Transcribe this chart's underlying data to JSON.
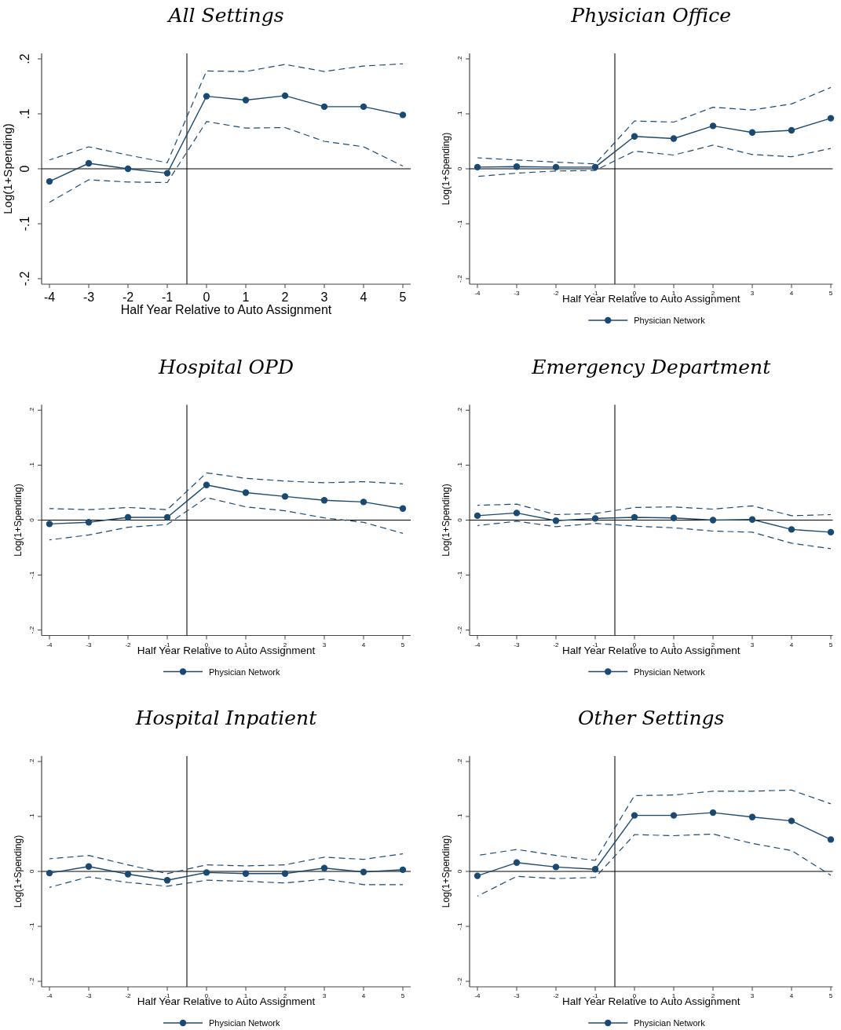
{
  "chart_data": [
    {
      "type": "line",
      "title": "All Settings",
      "xlabel": "Half Year Relative to Auto Assignment",
      "ylabel": "Log(1+Spending)",
      "x": [
        -4,
        -3,
        -2,
        -1,
        0,
        1,
        2,
        3,
        4,
        5
      ],
      "xlim": [
        -4.2,
        5.2
      ],
      "xticks": [
        -4,
        -3,
        -2,
        -1,
        0,
        1,
        2,
        3,
        4,
        5
      ],
      "ylim": [
        -0.21,
        0.21
      ],
      "yticks": [
        {
          "value": -0.2,
          "label": "-.2"
        },
        {
          "value": -0.1,
          "label": "-.1"
        },
        {
          "value": 0,
          "label": "0"
        },
        {
          "value": 0.1,
          "label": ".1"
        },
        {
          "value": 0.2,
          "label": ".2"
        }
      ],
      "marker": "circle",
      "line_style": "solid",
      "legend": false,
      "ref_lines": [
        {
          "axis": "x",
          "value": -0.5,
          "color": "#222222"
        },
        {
          "axis": "y",
          "value": 0,
          "color": "#000000"
        }
      ],
      "series": [
        {
          "color": "#1a4a72",
          "values": [
            -0.023,
            0.01,
            0.0,
            -0.008,
            0.132,
            0.125,
            0.133,
            0.113,
            0.113,
            0.098
          ]
        },
        {
          "color": "#1a4a72",
          "marker": "none",
          "line_style": "dashed",
          "values": [
            0.016,
            0.04,
            0.025,
            0.011,
            0.178,
            0.177,
            0.19,
            0.177,
            0.187,
            0.191
          ]
        },
        {
          "color": "#1a4a72",
          "marker": "none",
          "line_style": "dashed",
          "values": [
            -0.061,
            -0.02,
            -0.024,
            -0.025,
            0.086,
            0.074,
            0.075,
            0.05,
            0.04,
            0.005
          ]
        }
      ]
    },
    {
      "type": "line",
      "title": "Physician Office",
      "xlabel": "Half Year Relative to Auto Assignment",
      "ylabel": "Log(1+Spending)",
      "x": [
        -4,
        -3,
        -2,
        -1,
        0,
        1,
        2,
        3,
        4,
        5
      ],
      "xlim": [
        -4.2,
        5.05
      ],
      "xticks": [
        -4,
        -3,
        -2,
        -1,
        0,
        1,
        2,
        3,
        4,
        5
      ],
      "ylim": [
        -0.21,
        0.21
      ],
      "yticks": [
        {
          "value": -0.2,
          "label": "-.2"
        },
        {
          "value": -0.1,
          "label": "-.1"
        },
        {
          "value": 0,
          "label": "0"
        },
        {
          "value": 0.1,
          "label": ".1"
        },
        {
          "value": 0.2,
          "label": ".2"
        }
      ],
      "marker": "circle",
      "line_style": "solid",
      "legend": "bottom",
      "ref_lines": [
        {
          "axis": "x",
          "value": -0.5,
          "color": "#222222"
        },
        {
          "axis": "y",
          "value": 0,
          "color": "#000000"
        }
      ],
      "series": [
        {
          "name": "Physician Network",
          "color": "#1a4a72",
          "values": [
            0.003,
            0.004,
            0.003,
            0.003,
            0.059,
            0.055,
            0.078,
            0.066,
            0.07,
            0.092
          ]
        },
        {
          "color": "#1a4a72",
          "marker": "none",
          "line_style": "dashed",
          "values": [
            0.02,
            0.016,
            0.012,
            0.009,
            0.087,
            0.085,
            0.112,
            0.107,
            0.118,
            0.148
          ]
        },
        {
          "color": "#1a4a72",
          "marker": "none",
          "line_style": "dashed",
          "values": [
            -0.014,
            -0.008,
            -0.004,
            -0.003,
            0.032,
            0.025,
            0.043,
            0.026,
            0.022,
            0.037
          ]
        }
      ]
    },
    {
      "type": "line",
      "title": "Hospital OPD",
      "xlabel": "Half Year Relative to Auto Assignment",
      "ylabel": "Log(1+Spending)",
      "x": [
        -4,
        -3,
        -2,
        -1,
        0,
        1,
        2,
        3,
        4,
        5
      ],
      "xlim": [
        -4.2,
        5.2
      ],
      "xticks": [
        -4,
        -3,
        -2,
        -1,
        0,
        1,
        2,
        3,
        4,
        5
      ],
      "ylim": [
        -0.21,
        0.21
      ],
      "yticks": [
        {
          "value": -0.2,
          "label": "-.2"
        },
        {
          "value": -0.1,
          "label": "-.1"
        },
        {
          "value": 0,
          "label": "0"
        },
        {
          "value": 0.1,
          "label": ".1"
        },
        {
          "value": 0.2,
          "label": ".2"
        }
      ],
      "marker": "circle",
      "line_style": "solid",
      "legend": "bottom",
      "ref_lines": [
        {
          "axis": "x",
          "value": -0.5,
          "color": "#222222"
        },
        {
          "axis": "y",
          "value": 0,
          "color": "#000000"
        }
      ],
      "series": [
        {
          "name": "Physician Network",
          "color": "#1a4a72",
          "values": [
            -0.007,
            -0.004,
            0.005,
            0.005,
            0.064,
            0.05,
            0.043,
            0.036,
            0.033,
            0.021
          ]
        },
        {
          "color": "#1a4a72",
          "marker": "none",
          "line_style": "dashed",
          "values": [
            0.021,
            0.019,
            0.023,
            0.019,
            0.086,
            0.076,
            0.071,
            0.068,
            0.07,
            0.066
          ]
        },
        {
          "color": "#1a4a72",
          "marker": "none",
          "line_style": "dashed",
          "values": [
            -0.036,
            -0.027,
            -0.013,
            -0.008,
            0.041,
            0.024,
            0.017,
            0.004,
            -0.004,
            -0.024
          ]
        }
      ]
    },
    {
      "type": "line",
      "title": "Emergency Department",
      "xlabel": "Half Year Relative to Auto Assignment",
      "ylabel": "Log(1+Spending)",
      "x": [
        -4,
        -3,
        -2,
        -1,
        0,
        1,
        2,
        3,
        4,
        5
      ],
      "xlim": [
        -4.2,
        5.05
      ],
      "xticks": [
        -4,
        -3,
        -2,
        -1,
        0,
        1,
        2,
        3,
        4,
        5
      ],
      "ylim": [
        -0.21,
        0.21
      ],
      "yticks": [
        {
          "value": -0.2,
          "label": "-.2"
        },
        {
          "value": -0.1,
          "label": "-.1"
        },
        {
          "value": 0,
          "label": "0"
        },
        {
          "value": 0.1,
          "label": ".1"
        },
        {
          "value": 0.2,
          "label": ".2"
        }
      ],
      "marker": "circle",
      "line_style": "solid",
      "legend": "bottom",
      "ref_lines": [
        {
          "axis": "x",
          "value": -0.5,
          "color": "#222222"
        },
        {
          "axis": "y",
          "value": 0,
          "color": "#000000"
        }
      ],
      "series": [
        {
          "name": "Physician Network",
          "color": "#1a4a72",
          "values": [
            0.008,
            0.013,
            -0.001,
            0.003,
            0.005,
            0.004,
            0.0,
            0.001,
            -0.017,
            -0.022
          ]
        },
        {
          "color": "#1a4a72",
          "marker": "none",
          "line_style": "dashed",
          "values": [
            0.027,
            0.029,
            0.01,
            0.012,
            0.023,
            0.024,
            0.02,
            0.026,
            0.008,
            0.01
          ]
        },
        {
          "color": "#1a4a72",
          "marker": "none",
          "line_style": "dashed",
          "values": [
            -0.01,
            -0.002,
            -0.012,
            -0.006,
            -0.011,
            -0.014,
            -0.02,
            -0.022,
            -0.042,
            -0.052
          ]
        }
      ]
    },
    {
      "type": "line",
      "title": "Hospital Inpatient",
      "xlabel": "Half Year Relative to Auto Assignment",
      "ylabel": "Log(1+Spending)",
      "x": [
        -4,
        -3,
        -2,
        -1,
        0,
        1,
        2,
        3,
        4,
        5
      ],
      "xlim": [
        -4.2,
        5.2
      ],
      "xticks": [
        -4,
        -3,
        -2,
        -1,
        0,
        1,
        2,
        3,
        4,
        5
      ],
      "ylim": [
        -0.21,
        0.21
      ],
      "yticks": [
        {
          "value": -0.2,
          "label": "-.2"
        },
        {
          "value": -0.1,
          "label": "-.1"
        },
        {
          "value": 0,
          "label": "0"
        },
        {
          "value": 0.1,
          "label": ".1"
        },
        {
          "value": 0.2,
          "label": ".2"
        }
      ],
      "marker": "circle",
      "line_style": "solid",
      "legend": "bottom",
      "ref_lines": [
        {
          "axis": "x",
          "value": -0.5,
          "color": "#222222"
        },
        {
          "axis": "y",
          "value": 0,
          "color": "#000000"
        }
      ],
      "series": [
        {
          "name": "Physician Network",
          "color": "#1a4a72",
          "values": [
            -0.003,
            0.009,
            -0.005,
            -0.016,
            -0.002,
            -0.004,
            -0.004,
            0.006,
            -0.001,
            0.003
          ]
        },
        {
          "color": "#1a4a72",
          "marker": "none",
          "line_style": "dashed",
          "values": [
            0.023,
            0.029,
            0.012,
            -0.004,
            0.012,
            0.01,
            0.012,
            0.026,
            0.022,
            0.032
          ]
        },
        {
          "color": "#1a4a72",
          "marker": "none",
          "line_style": "dashed",
          "values": [
            -0.029,
            -0.01,
            -0.02,
            -0.027,
            -0.016,
            -0.018,
            -0.021,
            -0.014,
            -0.024,
            -0.024
          ]
        }
      ]
    },
    {
      "type": "line",
      "title": "Other Settings",
      "xlabel": "Half Year Relative to Auto Assignment",
      "ylabel": "Log(1+Spending)",
      "x": [
        -4,
        -3,
        -2,
        -1,
        0,
        1,
        2,
        3,
        4,
        5
      ],
      "xlim": [
        -4.2,
        5.05
      ],
      "xticks": [
        -4,
        -3,
        -2,
        -1,
        0,
        1,
        2,
        3,
        4,
        5
      ],
      "ylim": [
        -0.21,
        0.21
      ],
      "yticks": [
        {
          "value": -0.2,
          "label": "-.2"
        },
        {
          "value": -0.1,
          "label": "-.1"
        },
        {
          "value": 0,
          "label": "0"
        },
        {
          "value": 0.1,
          "label": ".1"
        },
        {
          "value": 0.2,
          "label": ".2"
        }
      ],
      "marker": "circle",
      "line_style": "solid",
      "legend": "bottom",
      "ref_lines": [
        {
          "axis": "x",
          "value": -0.5,
          "color": "#222222"
        },
        {
          "axis": "y",
          "value": 0,
          "color": "#000000"
        }
      ],
      "series": [
        {
          "name": "Physician Network",
          "color": "#1a4a72",
          "values": [
            -0.008,
            0.016,
            0.008,
            0.004,
            0.102,
            0.102,
            0.107,
            0.099,
            0.092,
            0.058
          ]
        },
        {
          "color": "#1a4a72",
          "marker": "none",
          "line_style": "dashed",
          "values": [
            0.029,
            0.04,
            0.029,
            0.02,
            0.138,
            0.139,
            0.146,
            0.146,
            0.148,
            0.123
          ]
        },
        {
          "color": "#1a4a72",
          "marker": "none",
          "line_style": "dashed",
          "values": [
            -0.045,
            -0.009,
            -0.013,
            -0.011,
            0.067,
            0.065,
            0.068,
            0.051,
            0.038,
            -0.007
          ]
        }
      ]
    }
  ]
}
